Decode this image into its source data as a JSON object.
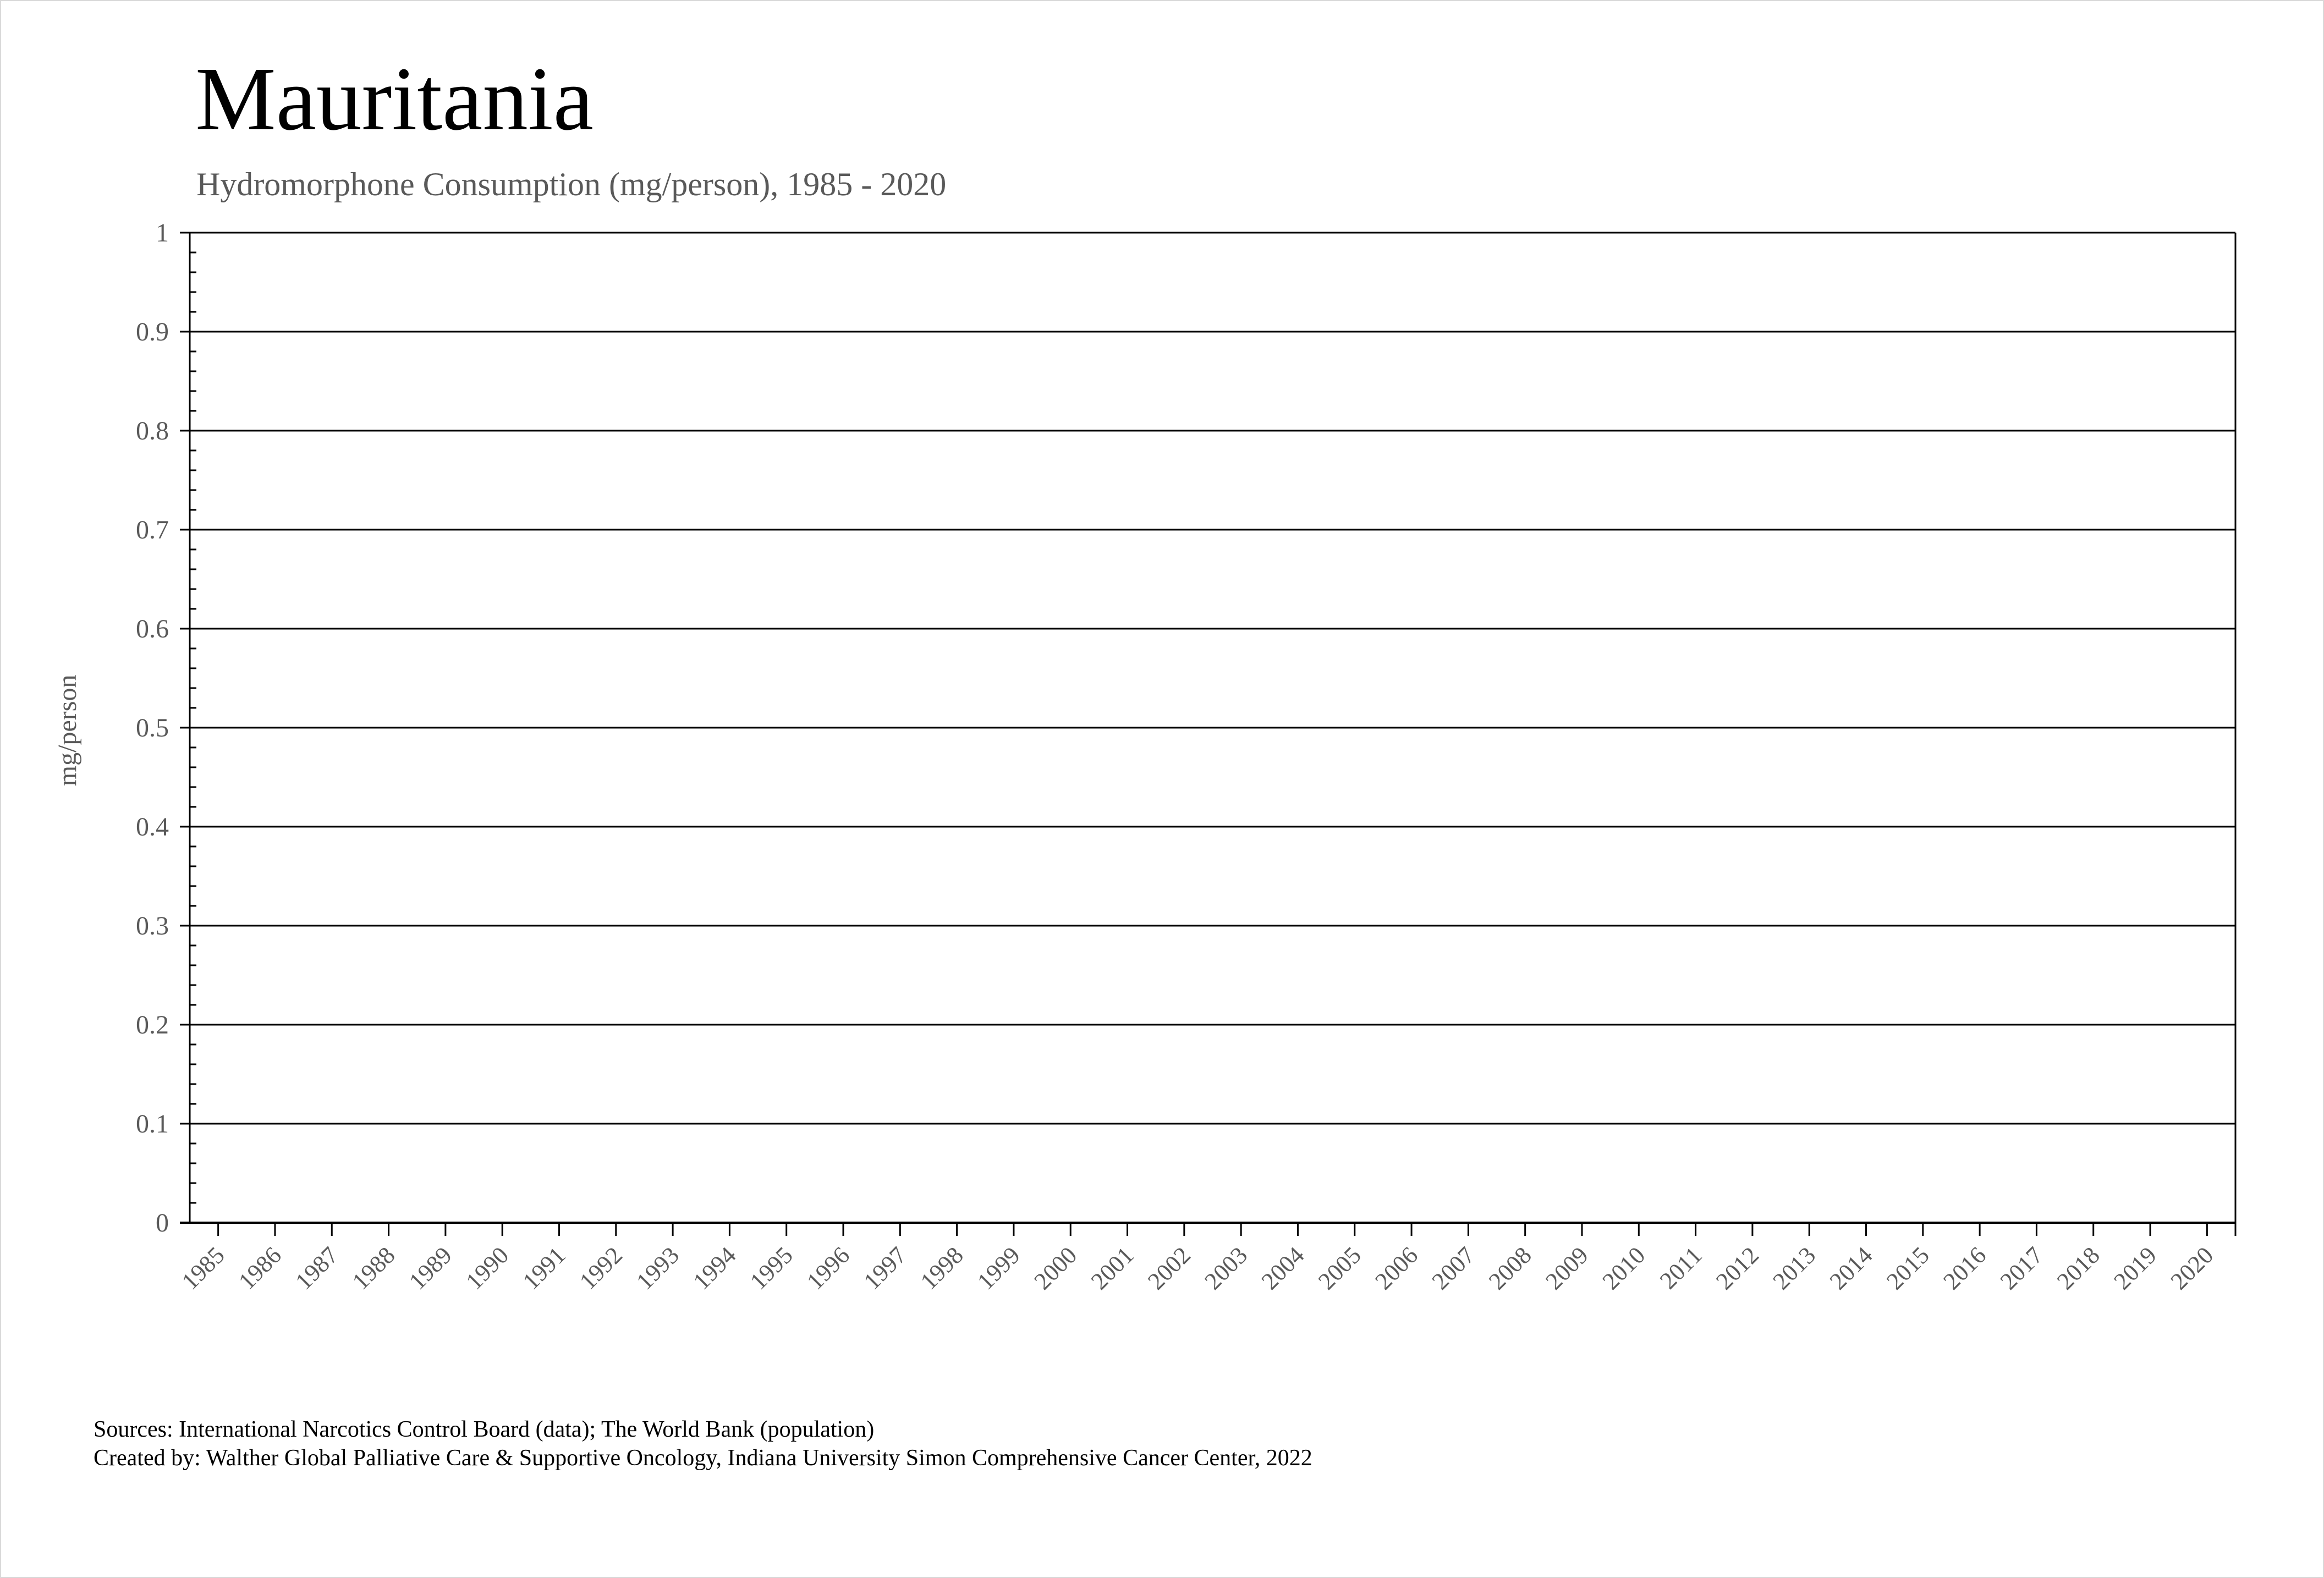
{
  "chart_data": {
    "type": "line",
    "title": "Mauritania",
    "subtitle": "Hydromorphone Consumption (mg/person), 1985 - 2020",
    "xlabel": "",
    "ylabel": "mg/person",
    "categories": [
      "1985",
      "1986",
      "1987",
      "1988",
      "1989",
      "1990",
      "1991",
      "1992",
      "1993",
      "1994",
      "1995",
      "1996",
      "1997",
      "1998",
      "1999",
      "2000",
      "2001",
      "2002",
      "2003",
      "2004",
      "2005",
      "2006",
      "2007",
      "2008",
      "2009",
      "2010",
      "2011",
      "2012",
      "2013",
      "2014",
      "2015",
      "2016",
      "2017",
      "2018",
      "2019",
      "2020"
    ],
    "ylim": [
      0,
      1
    ],
    "yticks": [
      "0",
      "0.1",
      "0.2",
      "0.3",
      "0.4",
      "0.5",
      "0.6",
      "0.7",
      "0.8",
      "0.9",
      "1"
    ],
    "grid": true,
    "series": [],
    "colors": {
      "axis": "#000000",
      "label": "#595959",
      "title": "#000000"
    }
  },
  "footer": {
    "sources": "Sources: International Narcotics Control Board (data); The World Bank (population)",
    "created_by": "Created by: Walther Global Palliative Care & Supportive Oncology, Indiana University Simon Comprehensive Cancer Center, 2022"
  }
}
